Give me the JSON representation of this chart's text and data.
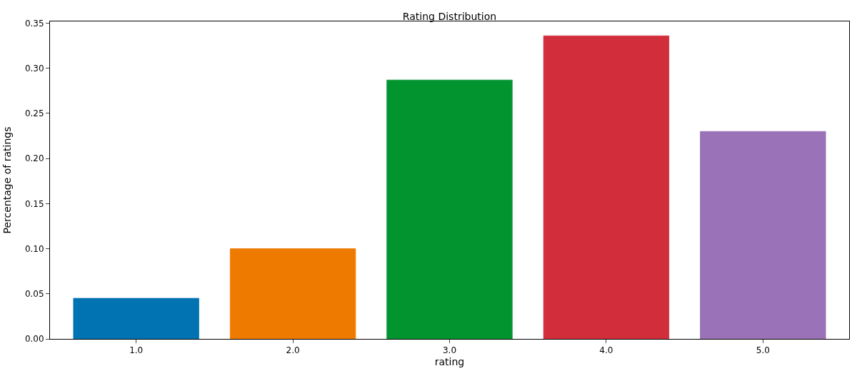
{
  "chart_data": {
    "type": "bar",
    "title": "Rating Distribution",
    "xlabel": "rating",
    "ylabel": "Percentage of ratings",
    "categories": [
      "1.0",
      "2.0",
      "3.0",
      "4.0",
      "5.0"
    ],
    "values": [
      0.045,
      0.1,
      0.287,
      0.336,
      0.23
    ],
    "colors": [
      "#0173b2",
      "#ee7a00",
      "#02942f",
      "#d22d3a",
      "#9a72b7"
    ],
    "ylim": [
      0,
      0.352
    ],
    "yticks": [
      {
        "value": 0,
        "label": "0.00"
      },
      {
        "value": 0.05,
        "label": "0.05"
      },
      {
        "value": 0.1,
        "label": "0.10"
      },
      {
        "value": 0.15,
        "label": "0.15"
      },
      {
        "value": 0.2,
        "label": "0.20"
      },
      {
        "value": 0.25,
        "label": "0.25"
      },
      {
        "value": 0.3,
        "label": "0.30"
      },
      {
        "value": 0.35,
        "label": "0.35"
      }
    ]
  }
}
